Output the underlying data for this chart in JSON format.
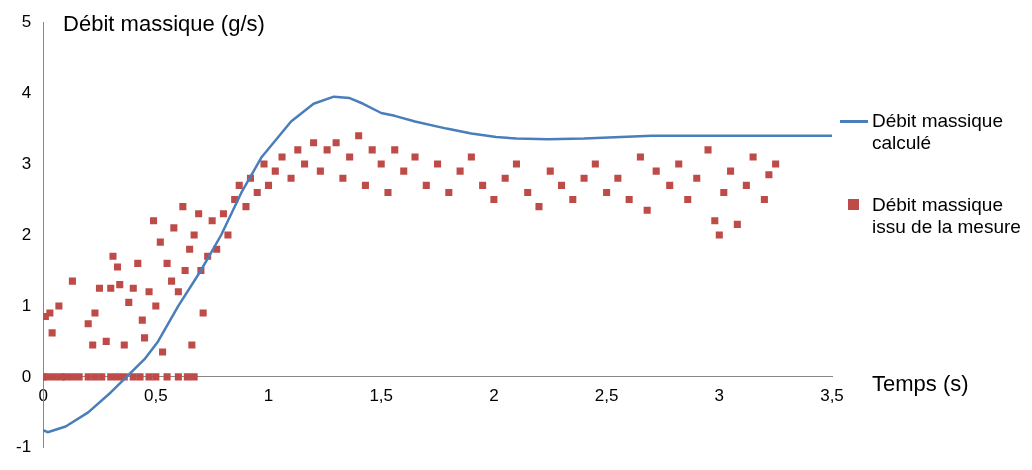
{
  "chart_data": {
    "type": "line",
    "ylabel": "Débit massique (g/s)",
    "xlabel": "Temps (s)",
    "xlim": [
      0,
      3.5
    ],
    "xticks": [
      0,
      {
        "value": 0.5,
        "label": "0,5"
      },
      1,
      {
        "value": 1.5,
        "label": "1,5"
      },
      2,
      {
        "value": 2.5,
        "label": "2,5"
      },
      3,
      {
        "value": 3.5,
        "label": "3,5"
      }
    ],
    "ylim": [
      -1,
      5
    ],
    "yticks": [
      -1,
      0,
      1,
      2,
      3,
      4,
      5
    ],
    "grid": false,
    "legend": "right",
    "series": [
      {
        "name": "Débit massique calculé",
        "color": "#4a7ebb",
        "marker": "none",
        "line_style": "solid",
        "x": [
          0,
          0.02,
          0.1,
          0.2,
          0.3,
          0.37,
          0.45,
          0.51,
          0.6,
          0.7,
          0.79,
          0.88,
          0.97,
          1.1,
          1.2,
          1.29,
          1.36,
          1.42,
          1.5,
          1.56,
          1.65,
          1.79,
          1.9,
          2.01,
          2.1,
          2.24,
          2.4,
          2.7,
          3.0,
          3.5
        ],
        "values": [
          -0.75,
          -0.78,
          -0.7,
          -0.5,
          -0.22,
          0,
          0.25,
          0.5,
          1.0,
          1.5,
          2.0,
          2.6,
          3.1,
          3.6,
          3.85,
          3.95,
          3.93,
          3.85,
          3.72,
          3.68,
          3.6,
          3.5,
          3.43,
          3.38,
          3.36,
          3.35,
          3.36,
          3.4,
          3.4,
          3.4
        ]
      },
      {
        "name": "Débit massique issu de la mesure",
        "type": "scatter",
        "color": "#be4b48",
        "marker": "square",
        "x": [
          0,
          0.02,
          0.05,
          0.08,
          0.1,
          0.13,
          0.16,
          0.2,
          0.23,
          0.26,
          0.3,
          0.33,
          0.36,
          0.4,
          0.43,
          0.47,
          0.5,
          0.55,
          0.6,
          0.64,
          0.67,
          0.01,
          0.03,
          0.04,
          0.07,
          0.13,
          0.2,
          0.22,
          0.23,
          0.25,
          0.28,
          0.3,
          0.31,
          0.33,
          0.34,
          0.36,
          0.38,
          0.4,
          0.42,
          0.44,
          0.45,
          0.47,
          0.49,
          0.5,
          0.52,
          0.53,
          0.55,
          0.57,
          0.58,
          0.6,
          0.62,
          0.63,
          0.65,
          0.66,
          0.67,
          0.69,
          0.7,
          0.71,
          0.73,
          0.75,
          0.77,
          0.8,
          0.82,
          0.85,
          0.87,
          0.9,
          0.92,
          0.95,
          0.98,
          1.0,
          1.03,
          1.06,
          1.1,
          1.13,
          1.16,
          1.2,
          1.23,
          1.26,
          1.3,
          1.33,
          1.36,
          1.4,
          1.43,
          1.46,
          1.5,
          1.53,
          1.56,
          1.6,
          1.65,
          1.7,
          1.75,
          1.8,
          1.85,
          1.9,
          1.95,
          2.0,
          2.05,
          2.1,
          2.15,
          2.2,
          2.25,
          2.3,
          2.35,
          2.4,
          2.45,
          2.5,
          2.55,
          2.6,
          2.65,
          2.68,
          2.72,
          2.78,
          2.82,
          2.86,
          2.9,
          2.95,
          2.98,
          3.0,
          3.02,
          3.05,
          3.08,
          3.12,
          3.15,
          3.2,
          3.22,
          3.25
        ],
        "values": [
          0,
          0,
          0,
          0,
          0,
          0,
          0,
          0,
          0,
          0,
          0,
          0,
          0,
          0,
          0,
          0,
          0,
          0,
          0,
          0,
          0,
          0.85,
          0.9,
          0.62,
          1.0,
          1.35,
          0.75,
          0.45,
          0.9,
          1.25,
          0.5,
          1.25,
          1.7,
          1.55,
          1.3,
          0.45,
          1.05,
          1.25,
          1.6,
          0.8,
          0.55,
          1.2,
          2.2,
          1.0,
          1.9,
          0.35,
          1.6,
          1.35,
          2.1,
          1.2,
          2.4,
          1.5,
          1.8,
          0.45,
          2.0,
          2.3,
          1.5,
          0.9,
          1.7,
          2.2,
          1.8,
          2.3,
          2.0,
          2.5,
          2.7,
          2.4,
          2.8,
          2.6,
          3.0,
          2.7,
          2.9,
          3.1,
          2.8,
          3.2,
          3.0,
          3.3,
          2.9,
          3.2,
          3.3,
          2.8,
          3.1,
          3.4,
          2.7,
          3.2,
          3.0,
          2.6,
          3.2,
          2.9,
          3.1,
          2.7,
          3.0,
          2.6,
          2.9,
          3.1,
          2.7,
          2.5,
          2.8,
          3.0,
          2.6,
          2.4,
          2.9,
          2.7,
          2.5,
          2.8,
          3.0,
          2.6,
          2.8,
          2.5,
          3.1,
          2.35,
          2.9,
          2.7,
          3.0,
          2.5,
          2.8,
          3.2,
          2.2,
          2.0,
          2.6,
          2.9,
          2.15,
          2.7,
          3.1,
          2.5,
          2.85,
          3.0
        ]
      }
    ]
  }
}
